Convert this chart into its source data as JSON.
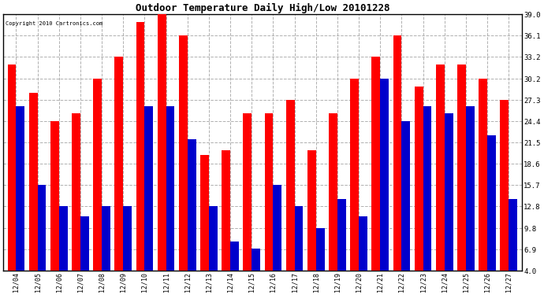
{
  "title": "Outdoor Temperature Daily High/Low 20101228",
  "copyright": "Copyright 2010 Cartronics.com",
  "dates": [
    "12/04",
    "12/05",
    "12/06",
    "12/07",
    "12/08",
    "12/09",
    "12/10",
    "12/11",
    "12/12",
    "12/13",
    "12/14",
    "12/15",
    "12/16",
    "12/17",
    "12/18",
    "12/19",
    "12/20",
    "12/21",
    "12/22",
    "12/23",
    "12/24",
    "12/25",
    "12/26",
    "12/27"
  ],
  "highs": [
    32.2,
    28.3,
    24.4,
    25.5,
    30.2,
    33.2,
    38.0,
    39.0,
    36.1,
    19.8,
    20.5,
    25.5,
    25.5,
    27.3,
    20.5,
    25.5,
    30.2,
    33.2,
    36.1,
    29.2,
    32.2,
    32.2,
    30.2,
    27.3
  ],
  "lows": [
    26.5,
    15.7,
    12.8,
    11.5,
    12.8,
    12.8,
    26.5,
    26.5,
    22.0,
    12.8,
    8.0,
    7.0,
    15.7,
    12.8,
    9.8,
    13.8,
    11.5,
    30.2,
    24.4,
    26.5,
    25.5,
    26.5,
    22.5,
    13.8
  ],
  "high_color": "#ff0000",
  "low_color": "#0000cc",
  "bg_color": "#ffffff",
  "grid_color": "#b0b0b0",
  "yticks": [
    4.0,
    6.9,
    9.8,
    12.8,
    15.7,
    18.6,
    21.5,
    24.4,
    27.3,
    30.2,
    33.2,
    36.1,
    39.0
  ],
  "ymin": 4.0,
  "ymax": 39.0,
  "bar_width": 0.4
}
